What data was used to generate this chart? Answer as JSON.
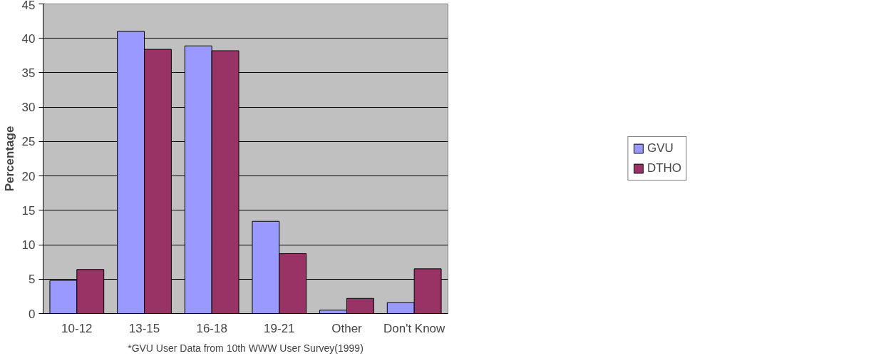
{
  "chart_data": {
    "type": "bar",
    "ylabel": "Percentage",
    "annotations": [
      "*GVU User Data from 10th WWW User Survey(1999)"
    ],
    "categories": [
      "10-12",
      "13-15",
      "16-18",
      "19-21",
      "Other",
      "Don't Know"
    ],
    "series": [
      {
        "name": "GVU",
        "color": "#9999ff",
        "values": [
          4.8,
          41,
          38.9,
          13.4,
          0.5,
          1.6
        ]
      },
      {
        "name": "DTHO",
        "color": "#993366",
        "values": [
          6.4,
          38.4,
          38.2,
          8.7,
          2.2,
          6.5
        ]
      }
    ],
    "ylim": [
      0,
      45
    ],
    "yticks": [
      0,
      5,
      10,
      15,
      20,
      25,
      30,
      35,
      40,
      45
    ],
    "grid": "y",
    "legend": "right"
  }
}
